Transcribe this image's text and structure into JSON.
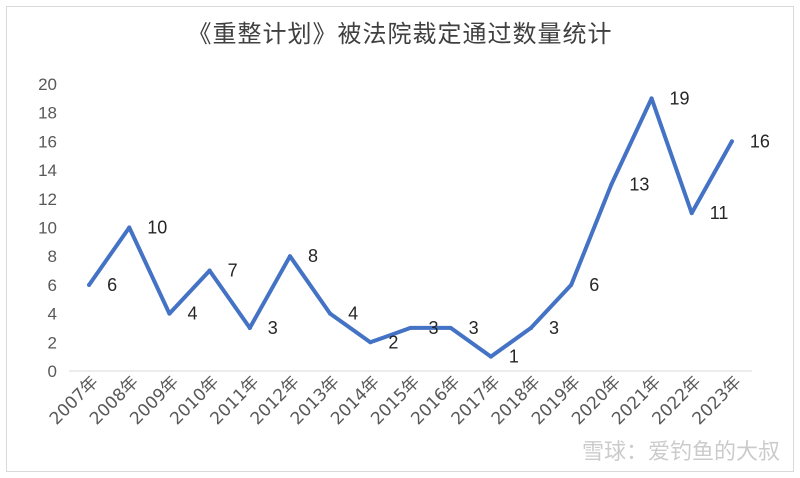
{
  "chart_data": {
    "type": "line",
    "title": "《重整计划》被法院裁定通过数量统计",
    "xlabel": "",
    "ylabel": "",
    "categories": [
      "2007年",
      "2008年",
      "2009年",
      "2010年",
      "2011年",
      "2012年",
      "2013年",
      "2014年",
      "2015年",
      "2016年",
      "2017年",
      "2018年",
      "2019年",
      "2020年",
      "2021年",
      "2022年",
      "2023年"
    ],
    "series": [
      {
        "values": [
          6,
          10,
          4,
          7,
          3,
          8,
          4,
          2,
          3,
          3,
          1,
          3,
          6,
          13,
          19,
          11,
          16
        ]
      }
    ],
    "yticks": [
      "0",
      "2",
      "4",
      "6",
      "8",
      "10",
      "12",
      "14",
      "16",
      "18",
      "20"
    ],
    "ylim": [
      0,
      20
    ],
    "grid": false,
    "legend": "none",
    "data_labels": true,
    "line_color": "#4472C4"
  },
  "watermark": "雪球：爱钓鱼的大叔"
}
